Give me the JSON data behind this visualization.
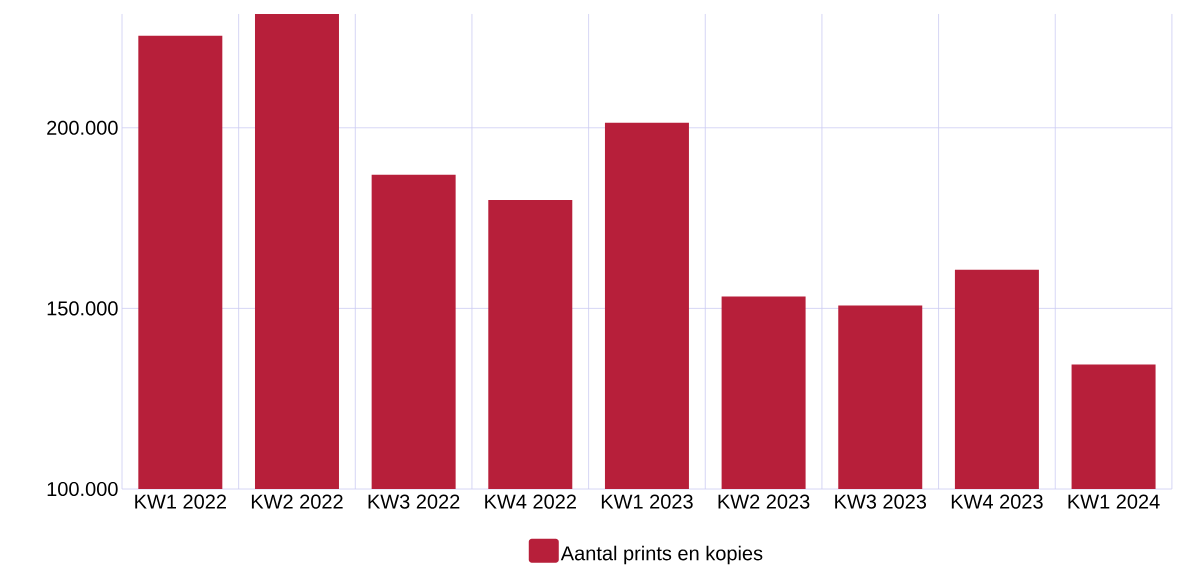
{
  "chart_data": {
    "type": "bar",
    "categories": [
      "KW1 2022",
      "KW2 2022",
      "KW3 2022",
      "KW4 2022",
      "KW1 2023",
      "KW2 2023",
      "KW3 2023",
      "KW4 2023",
      "KW1 2024"
    ],
    "series": [
      {
        "name": "Aantal prints en kopies",
        "color": "#b71f3a",
        "values": [
          225500,
          231500,
          187000,
          180000,
          201400,
          153300,
          150800,
          160700,
          134500
        ]
      }
    ],
    "ylim": [
      100000,
      231500
    ],
    "yticks": [
      {
        "value": 100000,
        "label": "100.000"
      },
      {
        "value": 150000,
        "label": "150.000"
      },
      {
        "value": 200000,
        "label": "200.000"
      }
    ],
    "grid": true,
    "legend": "bottom"
  }
}
